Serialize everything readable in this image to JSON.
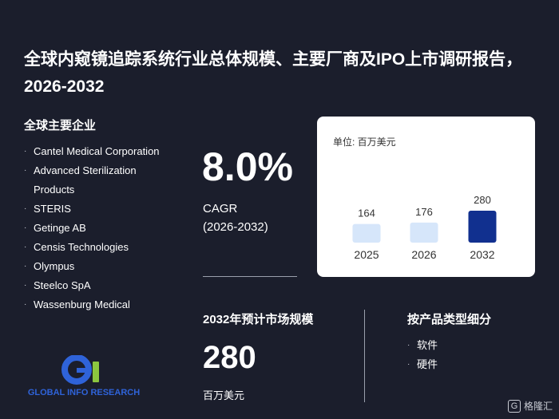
{
  "title": "全球内窥镜追踪系统行业总体规模、主要厂商及IPO上市调研报告，2026-2032",
  "companies": {
    "heading": "全球主要企业",
    "items": [
      "Cantel Medical Corporation",
      "Advanced Sterilization Products",
      "STERIS",
      "Getinge AB",
      "Censis Technologies",
      "Olympus",
      "Steelco SpA",
      "Wassenburg Medical"
    ]
  },
  "cagr": {
    "value": "8.0%",
    "label": "CAGR",
    "period": "(2026-2032)"
  },
  "market": {
    "heading": "2032年预计市场规模",
    "value": "280",
    "unit": "百万美元"
  },
  "segments": {
    "heading": "按产品类型细分",
    "items": [
      "软件",
      "硬件"
    ]
  },
  "chart_data": {
    "type": "bar",
    "unit_label": "单位: 百万美元",
    "categories": [
      "2025",
      "2026",
      "2032"
    ],
    "values": [
      164,
      176,
      280
    ],
    "bar_colors": [
      "#d6e6fa",
      "#d6e6fa",
      "#11308f"
    ],
    "text_color": "#333333"
  },
  "logo": {
    "mark": "Gi",
    "text": "GLOBAL INFO RESEARCH",
    "colors": {
      "g": "#2f63d9",
      "i": "#8cc63f",
      "text": "#2f63d9"
    }
  },
  "footer": {
    "brand": "格隆汇",
    "icon": "G"
  }
}
